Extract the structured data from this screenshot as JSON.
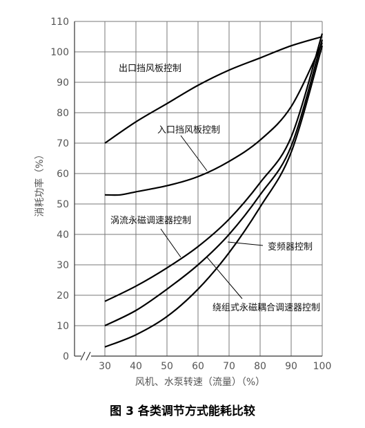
{
  "caption": "图 3 各类调节方式能耗比较",
  "chart_data": {
    "type": "line",
    "xlabel": "风机、水泵转速（流量）（%）",
    "ylabel": "消耗功率（%）",
    "xlim": [
      30,
      100
    ],
    "ylim": [
      0,
      110
    ],
    "x_ticks": [
      30,
      40,
      50,
      60,
      70,
      80,
      90,
      100
    ],
    "y_ticks": [
      0,
      10,
      20,
      30,
      40,
      50,
      60,
      70,
      80,
      90,
      100,
      110
    ],
    "grid": true,
    "series": [
      {
        "name": "出口挡风板控制",
        "x": [
          30,
          40,
          50,
          60,
          70,
          80,
          90,
          100
        ],
        "y": [
          70,
          77,
          83,
          89,
          94,
          98,
          102,
          105
        ]
      },
      {
        "name": "入口挡风板控制",
        "x": [
          30,
          35,
          40,
          50,
          60,
          70,
          80,
          90,
          100
        ],
        "y": [
          53,
          53,
          54,
          56,
          59,
          64,
          71,
          82,
          103
        ]
      },
      {
        "name": "涡流永磁调速器控制",
        "x": [
          30,
          40,
          50,
          60,
          70,
          80,
          90,
          100
        ],
        "y": [
          18,
          23,
          29,
          36,
          45,
          57,
          72,
          106
        ]
      },
      {
        "name": "变频器控制",
        "x": [
          30,
          40,
          50,
          60,
          70,
          80,
          90,
          100
        ],
        "y": [
          10,
          15,
          22,
          30,
          40,
          53,
          69,
          104
        ]
      },
      {
        "name": "绕组式永磁耦合调速器控制",
        "x": [
          30,
          40,
          50,
          60,
          70,
          80,
          90,
          100
        ],
        "y": [
          3,
          7,
          13,
          22,
          34,
          49,
          67,
          102
        ]
      }
    ]
  }
}
